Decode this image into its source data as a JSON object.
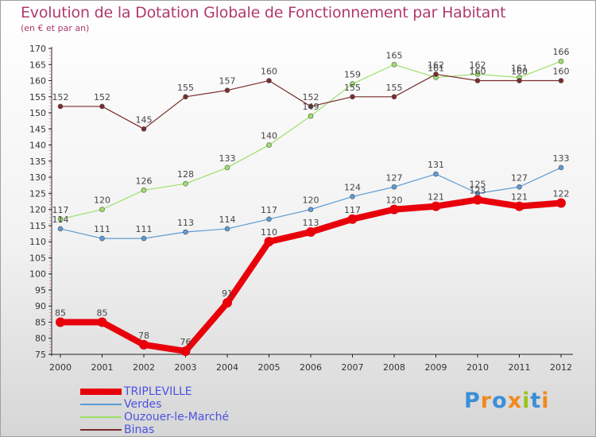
{
  "title": "Evolution de la Dotation Globale de Fonctionnement par Habitant",
  "subtitle": "(en € et par an)",
  "logo": "Proxiti",
  "chart_data": {
    "type": "line",
    "title": "Evolution de la Dotation Globale de Fonctionnement par Habitant",
    "subtitle": "(en € et par an)",
    "xlabel": "",
    "ylabel": "",
    "x": [
      "2000",
      "2001",
      "2002",
      "2003",
      "2004",
      "2005",
      "2006",
      "2007",
      "2008",
      "2009",
      "2010",
      "2011",
      "2012"
    ],
    "ylim": [
      75,
      170
    ],
    "yticks": [
      75,
      80,
      85,
      90,
      95,
      100,
      105,
      110,
      115,
      120,
      125,
      130,
      135,
      140,
      145,
      150,
      155,
      160,
      165,
      170
    ],
    "grid": false,
    "legend_position": "bottom-left",
    "series": [
      {
        "name": "TRIPLEVILLE",
        "color": "#e8000b",
        "values": [
          85,
          85,
          78,
          76,
          91,
          110,
          113,
          117,
          120,
          121,
          123,
          121,
          122
        ]
      },
      {
        "name": "Verdes",
        "color": "#5b9bd5",
        "values": [
          114,
          111,
          111,
          113,
          114,
          117,
          120,
          124,
          127,
          131,
          125,
          127,
          133
        ]
      },
      {
        "name": "Ouzouer-le-Marché",
        "color": "#9ee06a",
        "values": [
          117,
          120,
          126,
          128,
          133,
          140,
          149,
          159,
          165,
          161,
          162,
          161,
          166
        ]
      },
      {
        "name": "Binas",
        "color": "#7b2b2b",
        "values": [
          152,
          152,
          145,
          155,
          157,
          160,
          152,
          155,
          155,
          162,
          160,
          160,
          160
        ]
      }
    ]
  }
}
